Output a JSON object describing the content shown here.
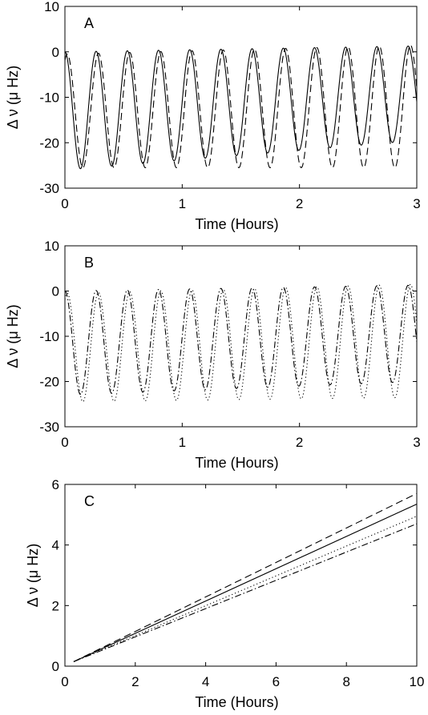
{
  "chart_data": [
    {
      "type": "line",
      "panel_label": "A",
      "xlabel": "Time (Hours)",
      "ylabel": "Δ ν (μ Hz)",
      "xlim": [
        0,
        3
      ],
      "ylim": [
        -30,
        10
      ],
      "xticks": [
        0,
        1,
        2,
        3
      ],
      "yticks": [
        -30,
        -20,
        -10,
        0,
        10
      ],
      "grid": false,
      "series": [
        {
          "style": "solid",
          "model": "oscillation",
          "period_hours": 0.266,
          "min_start": -26,
          "min_end": -19.5,
          "max_start": 0,
          "max_end": 1.3
        },
        {
          "style": "dashed",
          "model": "oscillation",
          "period_hours": 0.266,
          "phase_shift_hours": 0.02,
          "min_start": -25.5,
          "min_end": -25.5,
          "max_start": -0.5,
          "max_end": 1.5
        }
      ]
    },
    {
      "type": "line",
      "panel_label": "B",
      "xlabel": "Time (Hours)",
      "ylabel": "Δ ν (μ Hz)",
      "xlim": [
        0,
        3
      ],
      "ylim": [
        -30,
        10
      ],
      "xticks": [
        0,
        1,
        2,
        3
      ],
      "yticks": [
        -30,
        -20,
        -10,
        0,
        10
      ],
      "grid": false,
      "series": [
        {
          "style": "dashdot",
          "model": "oscillation",
          "period_hours": 0.266,
          "min_start": -23,
          "min_end": -20,
          "max_start": 0,
          "max_end": 1.3
        },
        {
          "style": "dotted",
          "model": "oscillation",
          "period_hours": 0.266,
          "phase_shift_hours": 0.02,
          "min_start": -24.5,
          "min_end": -23.5,
          "max_start": -0.5,
          "max_end": 1.5
        }
      ]
    },
    {
      "type": "line",
      "panel_label": "C",
      "xlabel": "Time (Hours)",
      "ylabel": "Δ ν (μ Hz)",
      "xlim": [
        0,
        10
      ],
      "ylim": [
        0,
        6
      ],
      "xticks": [
        0,
        2,
        4,
        6,
        8,
        10
      ],
      "yticks": [
        0,
        2,
        4,
        6
      ],
      "grid": false,
      "series": [
        {
          "style": "dashed",
          "x": [
            0.25,
            10
          ],
          "y": [
            0.15,
            5.7
          ]
        },
        {
          "style": "solid",
          "x": [
            0.25,
            10
          ],
          "y": [
            0.15,
            5.35
          ]
        },
        {
          "style": "dotted",
          "x": [
            0.25,
            10
          ],
          "y": [
            0.15,
            4.95
          ]
        },
        {
          "style": "dashdot",
          "x": [
            0.25,
            10
          ],
          "y": [
            0.15,
            4.7
          ]
        }
      ]
    }
  ]
}
